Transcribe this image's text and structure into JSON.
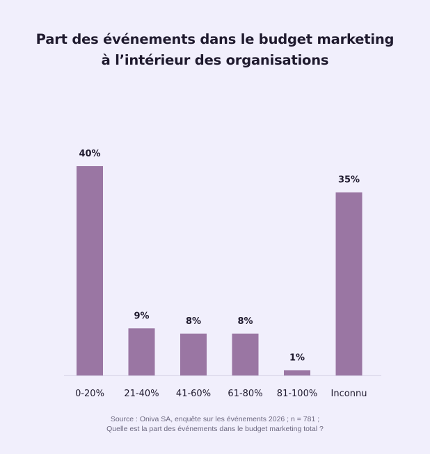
{
  "chart_data": {
    "type": "bar",
    "title": [
      "Part des événements dans le budget marketing",
      "à l’intérieur des organisations"
    ],
    "categories": [
      "0-20%",
      "21-40%",
      "41-60%",
      "61-80%",
      "81-100%",
      "Inconnu"
    ],
    "values": [
      40,
      9,
      8,
      8,
      1,
      35
    ],
    "value_suffix": "%",
    "ylim": [
      0,
      40
    ],
    "grid": false,
    "legend": "none",
    "bar_color": "#9a76a3",
    "label_color": "#1f1a2e",
    "axis_color": "#d7d3e6"
  },
  "source": {
    "line1": "Source : Oniva SA, enquête sur les événements 2026 ; n = 781 ;",
    "line2": "Quelle est la part des événements dans le budget marketing total ?"
  }
}
